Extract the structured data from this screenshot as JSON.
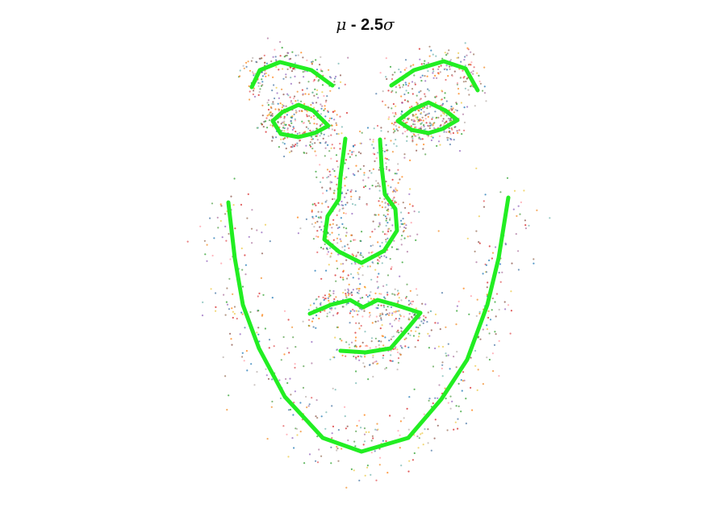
{
  "title": {
    "mu": "μ",
    "operator": " - 2.5",
    "sigma": "σ"
  },
  "colors": {
    "mean_shape": "#22ee22",
    "samples": [
      "#4e79a7",
      "#f28e2b",
      "#e15759",
      "#76b7b2",
      "#59a14f",
      "#edc948",
      "#b07aa1",
      "#ff9da7",
      "#9c755f",
      "#bab0ac",
      "#1f77b4",
      "#ff7f0e",
      "#2ca02c",
      "#d62728",
      "#9467bd",
      "#8c564b"
    ]
  }
}
